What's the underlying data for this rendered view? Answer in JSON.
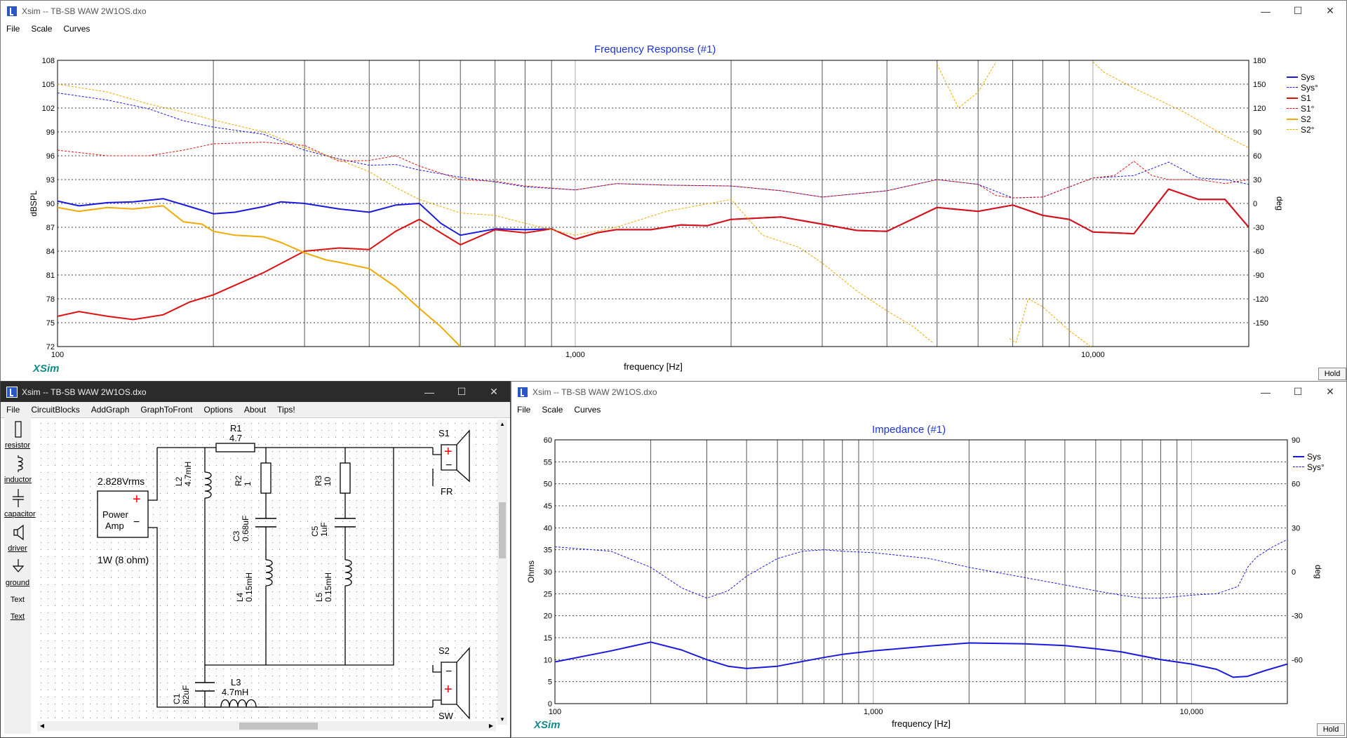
{
  "main_window": {
    "title": "Xsim -- TB-SB WAW 2W1OS.dxo",
    "controls": {
      "minimize": "—",
      "maximize": "☐",
      "close": "✕"
    },
    "menu": [
      "File",
      "Scale",
      "Curves"
    ],
    "chart_title": "Frequency Response (#1)",
    "logo": "XSim",
    "hold_label": "Hold",
    "legend": [
      {
        "name": "Sys",
        "color": "#1a1add",
        "style": "solid"
      },
      {
        "name": "Sys°",
        "color": "#1a1add",
        "style": "dashed"
      },
      {
        "name": "S1",
        "color": "#dd1111",
        "style": "solid"
      },
      {
        "name": "S1°",
        "color": "#dd1111",
        "style": "dashed"
      },
      {
        "name": "S2",
        "color": "#f0aa00",
        "style": "solid"
      },
      {
        "name": "S2°",
        "color": "#f0aa00",
        "style": "dashed"
      }
    ]
  },
  "circuit_window": {
    "title": "Xsim -- TB-SB WAW 2W1OS.dxo",
    "controls": {
      "minimize": "—",
      "maximize": "☐",
      "close": "✕"
    },
    "menu": [
      "File",
      "CircuitBlocks",
      "AddGraph",
      "GraphToFront",
      "Options",
      "About",
      "Tips!"
    ],
    "palette": [
      "resistor",
      "inductor",
      "capacitor",
      "driver",
      "ground",
      "Text",
      "Text"
    ],
    "palette_icons": [
      "resistor-icon",
      "inductor-icon",
      "capacitor-icon",
      "driver-icon",
      "ground-icon",
      "text-icon",
      "text-icon"
    ],
    "amp": {
      "voltage": "2.828Vrms",
      "label1": "Power",
      "label2": "Amp",
      "plus": "+",
      "minus": "−",
      "power": "1W (8 ohm)"
    },
    "components": {
      "R1": {
        "name": "R1",
        "value": "4.7"
      },
      "R2": {
        "name": "R2",
        "value": "1"
      },
      "R3": {
        "name": "R3",
        "value": "10"
      },
      "L2": {
        "name": "L2",
        "value": "4.7mH"
      },
      "L3": {
        "name": "L3",
        "value": "4.7mH"
      },
      "L4": {
        "name": "L4",
        "value": "0.15mH"
      },
      "L5": {
        "name": "L5",
        "value": "0.15mH"
      },
      "C1": {
        "name": "C1",
        "value": "82uF"
      },
      "C3": {
        "name": "C3",
        "value": "0.68uF"
      },
      "C5": {
        "name": "C5",
        "value": "1uF"
      },
      "S1": {
        "name": "S1",
        "label": "FR"
      },
      "S2": {
        "name": "S2",
        "label": "SW"
      }
    }
  },
  "impedance_window": {
    "title": "Xsim -- TB-SB WAW 2W1OS.dxo",
    "controls": {
      "minimize": "—",
      "maximize": "☐",
      "close": "✕"
    },
    "menu": [
      "File",
      "Scale",
      "Curves"
    ],
    "chart_title": "Impedance (#1)",
    "logo": "XSim",
    "hold_label": "Hold",
    "legend": [
      {
        "name": "Sys",
        "color": "#1a1add",
        "style": "solid"
      },
      {
        "name": "Sys°",
        "color": "#1a1add",
        "style": "dashed"
      }
    ]
  },
  "chart_data": [
    {
      "type": "line",
      "title": "Frequency Response (#1)",
      "xlabel": "frequency [Hz]",
      "ylabel": "dBSPL",
      "y2label": "deg",
      "x_scale": "log",
      "xlim": [
        100,
        20000
      ],
      "ylim": [
        72,
        108
      ],
      "y2lim": [
        -180,
        180
      ],
      "x_ticks": [
        100,
        1000,
        10000
      ],
      "x_tick_labels": [
        "100",
        "1,000",
        "10,000"
      ],
      "y_ticks": [
        72,
        75,
        78,
        81,
        84,
        87,
        90,
        93,
        96,
        99,
        102,
        105,
        108
      ],
      "y2_ticks": [
        -150,
        -120,
        -90,
        -60,
        -30,
        0,
        30,
        60,
        90,
        120,
        150,
        180
      ],
      "grid": true,
      "legend_position": "right",
      "series": [
        {
          "name": "Sys",
          "axis": "left",
          "style": "solid",
          "color": "#1a1add",
          "x": [
            100,
            110,
            125,
            140,
            160,
            180,
            200,
            220,
            250,
            270,
            300,
            350,
            400,
            450,
            500,
            550,
            600,
            700,
            800,
            900,
            1000,
            1100,
            1200,
            1400,
            1600,
            1800,
            2000,
            2500,
            3000,
            3500,
            4000,
            5000,
            6000,
            7000,
            8000,
            9000,
            10000,
            11000,
            12000,
            14000,
            16000,
            18000,
            20000
          ],
          "y": [
            90.3,
            89.7,
            90.1,
            90.2,
            90.6,
            89.6,
            88.7,
            88.9,
            89.6,
            90.2,
            90.0,
            89.3,
            88.9,
            89.8,
            90.0,
            87.5,
            86.0,
            86.8,
            86.7,
            86.8,
            85.5,
            86.3,
            86.7,
            86.7,
            87.3,
            87.2,
            88.0,
            88.3,
            87.4,
            86.6,
            86.5,
            89.5,
            89.0,
            89.8,
            88.5,
            88.0,
            86.4,
            86.3,
            86.2,
            91.8,
            90.5,
            90.5,
            87.0
          ]
        },
        {
          "name": "Sys°",
          "axis": "right",
          "style": "dashed",
          "color": "#1a1add",
          "x": [
            100,
            125,
            150,
            175,
            200,
            250,
            300,
            350,
            400,
            450,
            500,
            600,
            700,
            800,
            1000,
            1200,
            1500,
            2000,
            2500,
            3000,
            4000,
            5000,
            6000,
            7000,
            8000,
            10000,
            12000,
            14000,
            16000,
            18000,
            20000
          ],
          "y": [
            139,
            130,
            119,
            104,
            96,
            87,
            67,
            56,
            48,
            49,
            42,
            33,
            27,
            21,
            17,
            25,
            23,
            22,
            16,
            8,
            16,
            30,
            24,
            7,
            8,
            32,
            35,
            52,
            32,
            30,
            24
          ]
        },
        {
          "name": "S1",
          "axis": "left",
          "style": "solid",
          "color": "#dd1111",
          "x": [
            100,
            110,
            125,
            140,
            160,
            180,
            200,
            250,
            300,
            350,
            400,
            450,
            500,
            550,
            600,
            700,
            800,
            900,
            1000,
            1100,
            1200,
            1400,
            1600,
            1800,
            2000,
            2500,
            3000,
            3500,
            4000,
            5000,
            6000,
            7000,
            8000,
            9000,
            10000,
            11000,
            12000,
            14000,
            16000,
            18000,
            20000
          ],
          "y": [
            75.8,
            76.4,
            75.8,
            75.4,
            76.0,
            77.6,
            78.5,
            81.3,
            84.0,
            84.4,
            84.2,
            86.5,
            88.0,
            86.3,
            84.8,
            86.7,
            86.3,
            86.8,
            85.5,
            86.3,
            86.7,
            86.7,
            87.3,
            87.2,
            88.0,
            88.3,
            87.4,
            86.6,
            86.5,
            89.5,
            89.0,
            89.8,
            88.5,
            88.0,
            86.4,
            86.3,
            86.2,
            91.8,
            90.5,
            90.5,
            87.0
          ]
        },
        {
          "name": "S1°",
          "axis": "right",
          "style": "dashed",
          "color": "#dd1111",
          "x": [
            100,
            125,
            150,
            175,
            200,
            250,
            300,
            350,
            400,
            450,
            500,
            600,
            700,
            800,
            1000,
            1200,
            1500,
            2000,
            2500,
            3000,
            4000,
            5000,
            6000,
            6500,
            7000,
            8000,
            10000,
            11000,
            12000,
            13000,
            14000,
            16000,
            18000,
            20000
          ],
          "y": [
            67,
            60,
            60,
            67,
            75,
            77,
            73,
            53,
            54,
            60,
            47,
            30,
            28,
            22,
            17,
            25,
            23,
            22,
            16,
            8,
            16,
            30,
            24,
            10,
            7,
            8,
            32,
            35,
            53,
            35,
            30,
            30,
            25,
            30
          ]
        },
        {
          "name": "S2",
          "axis": "left",
          "style": "solid",
          "color": "#f0aa00",
          "x": [
            100,
            110,
            125,
            140,
            160,
            175,
            190,
            200,
            220,
            250,
            270,
            300,
            330,
            350,
            400,
            450,
            500,
            550,
            600
          ],
          "y": [
            89.5,
            89.0,
            89.5,
            89.3,
            89.7,
            87.7,
            87.4,
            86.5,
            86.0,
            85.8,
            85.1,
            83.8,
            82.9,
            82.6,
            81.8,
            79.5,
            76.8,
            74.5,
            72.0
          ]
        },
        {
          "name": "S2°",
          "axis": "right",
          "style": "dashed",
          "color": "#f0aa00",
          "x": [
            100,
            125,
            150,
            175,
            200,
            250,
            300,
            350,
            400,
            450,
            500,
            600,
            700,
            800,
            1000,
            1200,
            1500,
            2000,
            2300,
            2700,
            3000,
            3500,
            4000,
            4500,
            4900,
            5000,
            5500,
            6000,
            6500,
            6900,
            7100,
            7500,
            8000,
            9000,
            9900,
            10000,
            10500,
            12000,
            15000,
            18000,
            20000
          ],
          "y": [
            150,
            140,
            125,
            115,
            105,
            90,
            70,
            55,
            40,
            20,
            5,
            -12,
            -15,
            -25,
            -40,
            -30,
            -10,
            5,
            -40,
            -55,
            -75,
            -110,
            -135,
            -155,
            -175,
            175,
            120,
            140,
            178,
            -170,
            -175,
            -120,
            -130,
            -160,
            -180,
            178,
            165,
            145,
            115,
            85,
            70
          ]
        }
      ]
    },
    {
      "type": "line",
      "title": "Impedance (#1)",
      "xlabel": "frequency [Hz]",
      "ylabel": "Ohms",
      "y2label": "deg",
      "x_scale": "log",
      "xlim": [
        100,
        20000
      ],
      "ylim": [
        0,
        60
      ],
      "y2lim": [
        -90,
        90
      ],
      "x_ticks": [
        100,
        1000,
        10000
      ],
      "x_tick_labels": [
        "100",
        "1,000",
        "10,000"
      ],
      "y_ticks": [
        0,
        5,
        10,
        15,
        20,
        25,
        30,
        35,
        40,
        45,
        50,
        55,
        60
      ],
      "y2_ticks": [
        -60,
        -30,
        0,
        30,
        60,
        90
      ],
      "grid": true,
      "legend_position": "right",
      "series": [
        {
          "name": "Sys",
          "axis": "left",
          "style": "solid",
          "color": "#1a1add",
          "x": [
            100,
            150,
            200,
            250,
            300,
            350,
            400,
            500,
            600,
            700,
            800,
            1000,
            1500,
            2000,
            3000,
            4000,
            5000,
            6000,
            8000,
            10000,
            12000,
            13500,
            15000,
            17000,
            20000
          ],
          "y": [
            9.5,
            12.0,
            14.0,
            12.2,
            10.0,
            8.5,
            8.0,
            8.5,
            9.6,
            10.5,
            11.2,
            12.0,
            13.1,
            13.8,
            13.6,
            13.2,
            12.5,
            11.8,
            10.0,
            9.0,
            7.8,
            6.0,
            6.2,
            7.5,
            9.0
          ]
        },
        {
          "name": "Sys°",
          "axis": "right",
          "style": "dashed",
          "color": "#1a1add",
          "x": [
            100,
            150,
            200,
            250,
            300,
            350,
            400,
            500,
            600,
            700,
            800,
            1000,
            1500,
            2000,
            3000,
            4000,
            5000,
            6000,
            7000,
            8000,
            10000,
            12000,
            14000,
            15000,
            16000,
            18000,
            20000
          ],
          "y": [
            17,
            14,
            3,
            -11,
            -18,
            -13,
            -3,
            9,
            14,
            15,
            14,
            13,
            9,
            3,
            -4,
            -9,
            -13,
            -16,
            -18,
            -18,
            -16,
            -15,
            -10,
            3,
            10,
            17,
            22
          ]
        }
      ]
    }
  ]
}
